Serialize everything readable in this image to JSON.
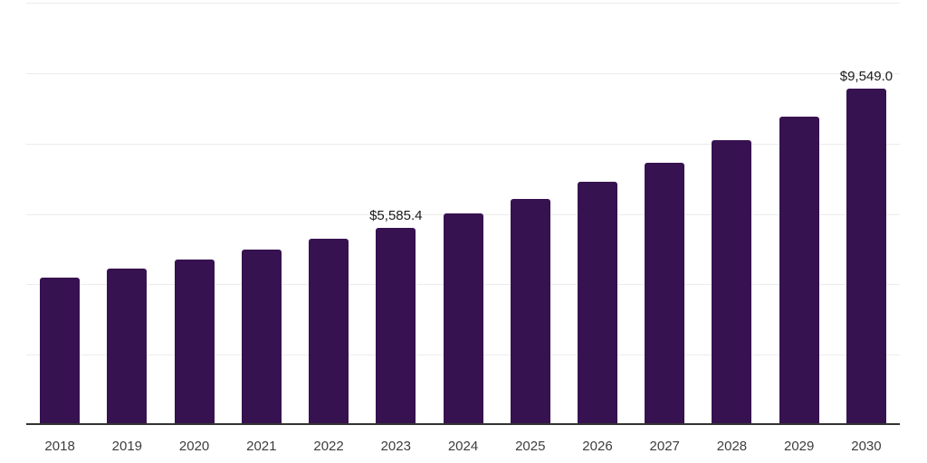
{
  "chart_data": {
    "type": "bar",
    "title": "",
    "xlabel": "",
    "ylabel": "",
    "categories": [
      "2018",
      "2019",
      "2020",
      "2021",
      "2022",
      "2023",
      "2024",
      "2025",
      "2026",
      "2027",
      "2028",
      "2029",
      "2030"
    ],
    "values": [
      4160,
      4410,
      4680,
      4965,
      5265,
      5585.4,
      6000,
      6405,
      6880,
      7425,
      8065,
      8760,
      9549
    ],
    "data_labels": {
      "2023": "$5,585.4",
      "2030": "$9,549.0"
    },
    "ylim": [
      0,
      12000
    ],
    "gridline_interval": 2000,
    "grid": "horizontal",
    "legend": "none",
    "y_axis_ticks_visible": false,
    "colors": {
      "bar": "#371250",
      "gridline": "#ececec",
      "axis_line": "#333333",
      "tick_label": "#3d3d3d",
      "data_label": "#1a1a1a",
      "background": "#ffffff"
    }
  }
}
